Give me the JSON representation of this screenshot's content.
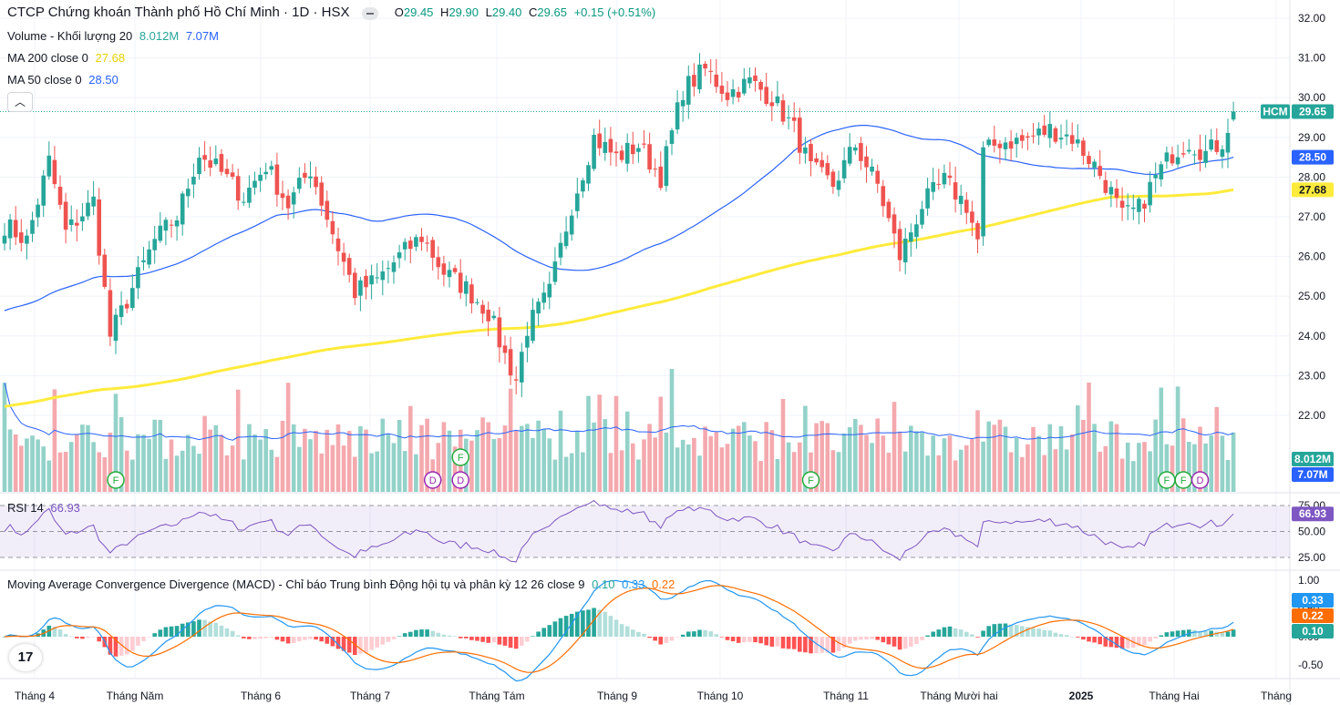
{
  "header": {
    "title": "CTCP Chứng khoán Thành phố Hồ Chí Minh · 1D · HSX",
    "ohlc": {
      "o_label": "O",
      "o": "29.45",
      "h_label": "H",
      "h": "29.90",
      "l_label": "L",
      "l": "29.40",
      "c_label": "C",
      "c": "29.65",
      "change": "+0.15 (+0.51%)"
    },
    "volume_label": "Volume - Khối lượng 20",
    "volume_value": "8.012M",
    "volume_ma_value": "7.07M",
    "ma200_label": "MA 200 close 0",
    "ma200_value": "27.68",
    "ma50_label": "MA 50 close 0",
    "ma50_value": "28.50",
    "collapse_icon": "chevron-up-icon"
  },
  "colors": {
    "up": "#26a69a",
    "down": "#ef5350",
    "ma50": "#2962ff",
    "ma200": "#ffeb3b",
    "vol_up": "#93d2c9",
    "vol_down": "#f4a9ae",
    "rsi": "#7e57c2",
    "macd": "#2196f3",
    "signal": "#ff6d00"
  },
  "price_axis": {
    "ticks": [
      "32.00",
      "31.00",
      "30.00",
      "29.00",
      "28.00",
      "27.00",
      "26.00",
      "25.00",
      "24.00",
      "23.00",
      "22.00"
    ],
    "tags": {
      "symbol": "HCM",
      "last": "29.65",
      "ma50": "28.50",
      "ma200": "27.68",
      "volume": "8.012M",
      "volume_ma": "7.07M"
    }
  },
  "rsi": {
    "label": "RSI 14",
    "value": "66.93",
    "ticks": [
      "75.00",
      "50.00",
      "25.00"
    ]
  },
  "macd": {
    "label": "Moving Average Convergence Divergence (MACD) - Chỉ báo Trung bình Động hội tụ và phân kỳ 12 26 close 9",
    "hist": "0.10",
    "macd": "0.33",
    "signal": "0.22",
    "ticks": [
      "1.00",
      "0.50",
      "0.00",
      "-0.50"
    ]
  },
  "time_axis": [
    "Tháng 4",
    "Tháng Năm",
    "Tháng 6",
    "Tháng 7",
    "Tháng Tám",
    "Tháng 9",
    "Tháng 10",
    "Tháng 11",
    "Tháng Mười hai",
    "2025",
    "Tháng Hai",
    "Tháng"
  ],
  "events": [
    {
      "letter": "F",
      "bar": 20
    },
    {
      "letter": "D",
      "bar": 77
    },
    {
      "letter": "D",
      "bar": 82
    },
    {
      "letter": "F",
      "bar": 82
    },
    {
      "letter": "F",
      "bar": 145
    },
    {
      "letter": "F",
      "bar": 209
    },
    {
      "letter": "F",
      "bar": 212
    },
    {
      "letter": "D",
      "bar": 215
    }
  ],
  "logo_text": "17",
  "chart_data": {
    "type": "candlestick",
    "title": "CTCP Chứng khoán Thành phố Hồ Chí Minh · 1D · HSX",
    "ylim": [
      21.7,
      32.3
    ],
    "waypoints": [
      [
        0,
        26.8
      ],
      [
        4,
        26.4
      ],
      [
        8,
        28.4
      ],
      [
        11,
        26.6
      ],
      [
        16,
        27.4
      ],
      [
        19,
        24.0
      ],
      [
        23,
        25.2
      ],
      [
        27,
        26.4
      ],
      [
        31,
        27.0
      ],
      [
        35,
        28.6
      ],
      [
        39,
        28.1
      ],
      [
        43,
        27.5
      ],
      [
        47,
        28.3
      ],
      [
        51,
        27.3
      ],
      [
        55,
        28.2
      ],
      [
        59,
        26.6
      ],
      [
        63,
        25.1
      ],
      [
        67,
        25.4
      ],
      [
        71,
        26.0
      ],
      [
        75,
        26.5
      ],
      [
        79,
        25.6
      ],
      [
        83,
        25.2
      ],
      [
        87,
        24.6
      ],
      [
        90,
        23.5
      ],
      [
        92,
        22.9
      ],
      [
        94,
        24.2
      ],
      [
        98,
        25.1
      ],
      [
        102,
        27.3
      ],
      [
        106,
        29.0
      ],
      [
        110,
        28.5
      ],
      [
        114,
        28.8
      ],
      [
        118,
        28.0
      ],
      [
        122,
        30.2
      ],
      [
        126,
        30.7
      ],
      [
        130,
        30.1
      ],
      [
        134,
        30.4
      ],
      [
        138,
        30.0
      ],
      [
        142,
        29.2
      ],
      [
        145,
        28.2
      ],
      [
        149,
        27.8
      ],
      [
        153,
        28.8
      ],
      [
        157,
        27.8
      ],
      [
        161,
        26.0
      ],
      [
        165,
        27.3
      ],
      [
        169,
        27.9
      ],
      [
        173,
        27.3
      ],
      [
        175,
        26.4
      ],
      [
        176,
        28.6
      ],
      [
        179,
        28.9
      ],
      [
        183,
        28.9
      ],
      [
        188,
        29.2
      ],
      [
        192,
        29.0
      ],
      [
        196,
        28.3
      ],
      [
        199,
        27.6
      ],
      [
        201,
        27.0
      ],
      [
        204,
        27.2
      ],
      [
        207,
        28.0
      ],
      [
        210,
        28.6
      ],
      [
        213,
        28.9
      ],
      [
        216,
        28.6
      ],
      [
        219,
        28.9
      ],
      [
        221,
        29.65
      ]
    ],
    "last_close": 29.65,
    "ma50_last": 28.5,
    "ma200_last": 27.68,
    "volume_last": "8.012M",
    "volume_ma_last": "7.07M",
    "rsi_last": 66.93,
    "macd_last": 0.33,
    "signal_last": 0.22,
    "hist_last": 0.1,
    "x_labels": [
      "Tháng 4",
      "Tháng Năm",
      "Tháng 6",
      "Tháng 7",
      "Tháng Tám",
      "Tháng 9",
      "Tháng 10",
      "Tháng 11",
      "Tháng Mười hai",
      "2025",
      "Tháng Hai",
      "Tháng"
    ],
    "y_ticks": [
      32,
      31,
      30,
      29,
      28,
      27,
      26,
      25,
      24,
      23,
      22
    ],
    "grid": true
  }
}
